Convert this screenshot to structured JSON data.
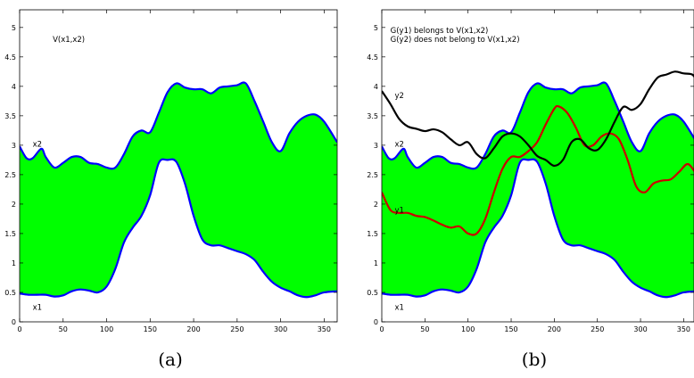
{
  "chart_data": [
    {
      "type": "area",
      "caption": "(a)",
      "xlim": [
        0,
        365
      ],
      "ylim": [
        0,
        5.3
      ],
      "xticks": [
        "0",
        "50",
        "100",
        "150",
        "200",
        "250",
        "300",
        "350"
      ],
      "yticks": [
        "0",
        "0.5",
        "1",
        "1.5",
        "2",
        "2.5",
        "3",
        "3.5",
        "4",
        "4.5",
        "5"
      ],
      "grid": false,
      "annotations": [
        {
          "text": "V(x1,x2)",
          "x": 38,
          "y": 4.8
        },
        {
          "text": "x2",
          "x": 15,
          "y": 3.02
        },
        {
          "text": "x1",
          "x": 15,
          "y": 0.25
        }
      ],
      "fill_color": "#00ff00",
      "band_color": "#0000ff",
      "series": [
        {
          "name": "x2",
          "color": "#0000ff",
          "x": [
            0,
            8,
            15,
            25,
            30,
            40,
            50,
            60,
            70,
            80,
            90,
            100,
            110,
            120,
            130,
            140,
            150,
            160,
            170,
            180,
            190,
            200,
            210,
            220,
            230,
            240,
            250,
            260,
            270,
            280,
            290,
            300,
            310,
            320,
            330,
            340,
            350,
            365
          ],
          "y": [
            2.98,
            2.78,
            2.78,
            2.94,
            2.8,
            2.62,
            2.7,
            2.8,
            2.8,
            2.7,
            2.68,
            2.62,
            2.62,
            2.85,
            3.15,
            3.25,
            3.22,
            3.55,
            3.9,
            4.05,
            3.98,
            3.95,
            3.95,
            3.88,
            3.98,
            4.0,
            4.02,
            4.05,
            3.75,
            3.4,
            3.05,
            2.9,
            3.2,
            3.4,
            3.5,
            3.52,
            3.4,
            3.05
          ]
        },
        {
          "name": "x1",
          "color": "#0000ff",
          "x": [
            0,
            10,
            20,
            30,
            40,
            50,
            60,
            70,
            80,
            90,
            100,
            110,
            120,
            130,
            140,
            150,
            160,
            170,
            180,
            190,
            200,
            210,
            220,
            230,
            240,
            250,
            260,
            270,
            280,
            290,
            300,
            310,
            320,
            330,
            340,
            350,
            365
          ],
          "y": [
            0.48,
            0.46,
            0.46,
            0.46,
            0.43,
            0.45,
            0.52,
            0.55,
            0.53,
            0.5,
            0.6,
            0.9,
            1.35,
            1.6,
            1.8,
            2.15,
            2.7,
            2.75,
            2.72,
            2.35,
            1.8,
            1.4,
            1.3,
            1.3,
            1.25,
            1.2,
            1.15,
            1.05,
            0.85,
            0.68,
            0.58,
            0.52,
            0.45,
            0.42,
            0.45,
            0.5,
            0.52
          ]
        }
      ]
    },
    {
      "type": "area",
      "caption": "(b)",
      "xlim": [
        0,
        365
      ],
      "ylim": [
        0,
        5.3
      ],
      "xticks": [
        "0",
        "50",
        "100",
        "150",
        "200",
        "250",
        "300",
        "350"
      ],
      "yticks": [
        "0",
        "0.5",
        "1",
        "1.5",
        "2",
        "2.5",
        "3",
        "3.5",
        "4",
        "4.5",
        "5"
      ],
      "grid": false,
      "annotations": [
        {
          "text": "G(y1) belongs to V(x1,x2)",
          "x": 10,
          "y": 4.95
        },
        {
          "text": "G(y2) does not belong to V(x1,x2)",
          "x": 10,
          "y": 4.8
        },
        {
          "text": "y2",
          "x": 15,
          "y": 3.85
        },
        {
          "text": "x2",
          "x": 15,
          "y": 3.02
        },
        {
          "text": "y1",
          "x": 15,
          "y": 1.9
        },
        {
          "text": "x1",
          "x": 15,
          "y": 0.25
        }
      ],
      "fill_color": "#00ff00",
      "band_color": "#0000ff",
      "series": [
        {
          "name": "x2",
          "color": "#0000ff",
          "x": [
            0,
            8,
            15,
            25,
            30,
            40,
            50,
            60,
            70,
            80,
            90,
            100,
            110,
            120,
            130,
            140,
            150,
            160,
            170,
            180,
            190,
            200,
            210,
            220,
            230,
            240,
            250,
            260,
            270,
            280,
            290,
            300,
            310,
            320,
            330,
            340,
            350,
            365
          ],
          "y": [
            2.98,
            2.78,
            2.78,
            2.94,
            2.8,
            2.62,
            2.7,
            2.8,
            2.8,
            2.7,
            2.68,
            2.62,
            2.62,
            2.85,
            3.15,
            3.25,
            3.22,
            3.55,
            3.9,
            4.05,
            3.98,
            3.95,
            3.95,
            3.88,
            3.98,
            4.0,
            4.02,
            4.05,
            3.75,
            3.4,
            3.05,
            2.9,
            3.2,
            3.4,
            3.5,
            3.52,
            3.4,
            3.05
          ]
        },
        {
          "name": "x1",
          "color": "#0000ff",
          "x": [
            0,
            10,
            20,
            30,
            40,
            50,
            60,
            70,
            80,
            90,
            100,
            110,
            120,
            130,
            140,
            150,
            160,
            170,
            180,
            190,
            200,
            210,
            220,
            230,
            240,
            250,
            260,
            270,
            280,
            290,
            300,
            310,
            320,
            330,
            340,
            350,
            365
          ],
          "y": [
            0.48,
            0.46,
            0.46,
            0.46,
            0.43,
            0.45,
            0.52,
            0.55,
            0.53,
            0.5,
            0.6,
            0.9,
            1.35,
            1.6,
            1.8,
            2.15,
            2.7,
            2.75,
            2.72,
            2.35,
            1.8,
            1.4,
            1.3,
            1.3,
            1.25,
            1.2,
            1.15,
            1.05,
            0.85,
            0.68,
            0.58,
            0.52,
            0.45,
            0.42,
            0.45,
            0.5,
            0.52
          ]
        },
        {
          "name": "y1",
          "color": "#cc0000",
          "x": [
            0,
            10,
            20,
            30,
            40,
            50,
            60,
            70,
            80,
            90,
            100,
            110,
            120,
            130,
            140,
            150,
            160,
            170,
            180,
            190,
            200,
            205,
            215,
            225,
            235,
            245,
            255,
            265,
            275,
            285,
            295,
            305,
            315,
            325,
            335,
            345,
            355,
            365
          ],
          "y": [
            2.2,
            1.9,
            1.85,
            1.85,
            1.8,
            1.78,
            1.72,
            1.65,
            1.6,
            1.62,
            1.5,
            1.5,
            1.75,
            2.2,
            2.6,
            2.8,
            2.8,
            2.9,
            3.05,
            3.35,
            3.62,
            3.66,
            3.55,
            3.3,
            3.0,
            3.0,
            3.15,
            3.2,
            3.1,
            2.75,
            2.3,
            2.2,
            2.35,
            2.4,
            2.42,
            2.55,
            2.68,
            2.5
          ]
        },
        {
          "name": "y2",
          "color": "#000000",
          "x": [
            0,
            10,
            20,
            30,
            40,
            50,
            60,
            70,
            80,
            90,
            100,
            110,
            120,
            130,
            140,
            150,
            160,
            170,
            180,
            190,
            200,
            210,
            220,
            230,
            240,
            250,
            260,
            270,
            280,
            290,
            300,
            310,
            320,
            330,
            340,
            350,
            360,
            365
          ],
          "y": [
            3.92,
            3.7,
            3.45,
            3.32,
            3.28,
            3.24,
            3.27,
            3.22,
            3.1,
            3.0,
            3.05,
            2.85,
            2.78,
            2.95,
            3.15,
            3.2,
            3.15,
            3.0,
            2.82,
            2.75,
            2.65,
            2.75,
            3.05,
            3.1,
            2.95,
            2.92,
            3.1,
            3.4,
            3.65,
            3.6,
            3.7,
            3.95,
            4.15,
            4.2,
            4.25,
            4.22,
            4.2,
            4.1
          ]
        }
      ]
    }
  ]
}
